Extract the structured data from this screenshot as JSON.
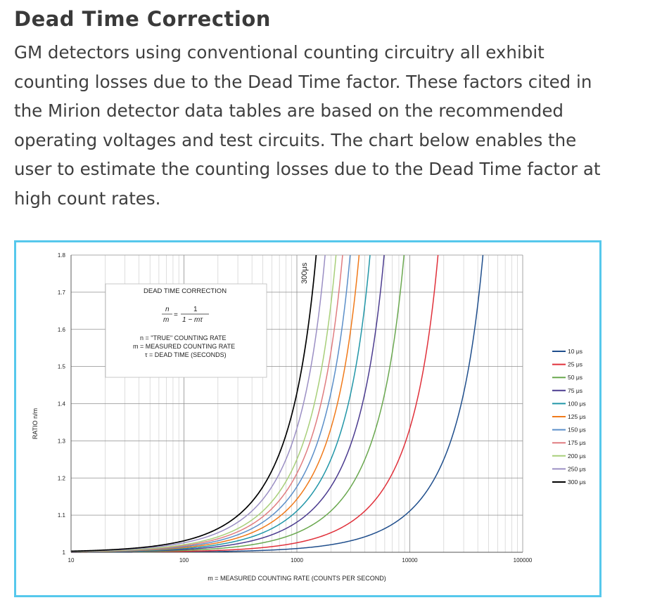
{
  "section": {
    "title": "Dead Time Correction",
    "body": "GM detectors using conventional counting circuitry all exhibit counting losses due to the Dead Time factor. These factors cited in the Mirion detector data tables are based on the recommended operating voltages and test circuits. The chart below enables the user to estimate the counting losses due to the Dead Time factor at high count rates."
  },
  "chart_data": {
    "type": "line",
    "title": "",
    "xlabel": "m = MEASURED COUNTING RATE (COUNTS PER SECOND)",
    "ylabel": "RATIO n/m",
    "x_scale": "log",
    "xlim": [
      10,
      100000
    ],
    "ylim": [
      1,
      1.8
    ],
    "grid": true,
    "legend_position": "right",
    "x_ticks": [
      "10",
      "100",
      "1000",
      "10000",
      "100000"
    ],
    "y_ticks": [
      "1",
      "1.1",
      "1.2",
      "1.3",
      "1.4",
      "1.5",
      "1.6",
      "1.7",
      "1.8"
    ],
    "formula_box": {
      "title": "DEAD TIME CORRECTION",
      "eq_lhs_num": "n",
      "eq_lhs_den": "m",
      "eq_equals": "=",
      "eq_rhs_num": "1",
      "eq_rhs_den": "1 − mτ",
      "def_n": "n = \"TRUE\" COUNTING RATE",
      "def_m": "m = MEASURED COUNTING RATE",
      "def_tau": "τ = DEAD TIME (SECONDS)"
    },
    "annotation": "300μs",
    "series": [
      {
        "name": "10 μs",
        "dead_time_s": 1e-05,
        "color": "#1f4e8c"
      },
      {
        "name": "25 μs",
        "dead_time_s": 2.5e-05,
        "color": "#e0303a"
      },
      {
        "name": "50 μs",
        "dead_time_s": 5e-05,
        "color": "#6aa84f"
      },
      {
        "name": "75 μs",
        "dead_time_s": 7.5e-05,
        "color": "#4b3b8f"
      },
      {
        "name": "100 μs",
        "dead_time_s": 0.0001,
        "color": "#2196a8"
      },
      {
        "name": "125 μs",
        "dead_time_s": 0.000125,
        "color": "#f07a1a"
      },
      {
        "name": "150 μs",
        "dead_time_s": 0.00015,
        "color": "#5b8fc9"
      },
      {
        "name": "175 μs",
        "dead_time_s": 0.000175,
        "color": "#e07d80"
      },
      {
        "name": "200 μs",
        "dead_time_s": 0.0002,
        "color": "#a8cf7a"
      },
      {
        "name": "250 μs",
        "dead_time_s": 0.00025,
        "color": "#9b8fc4"
      },
      {
        "name": "300 μs",
        "dead_time_s": 0.0003,
        "color": "#000000"
      }
    ]
  }
}
